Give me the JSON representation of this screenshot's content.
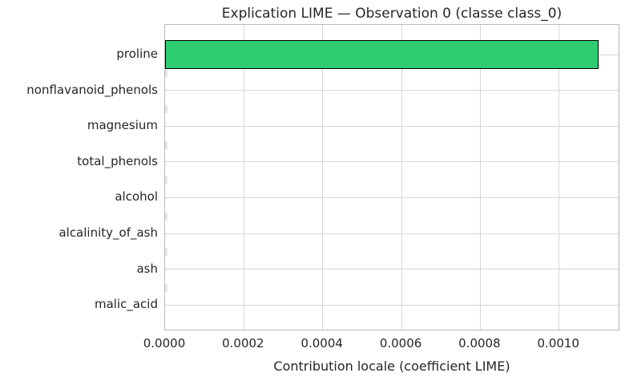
{
  "chart_data": {
    "type": "bar",
    "orientation": "horizontal",
    "title": "Explication LIME — Observation 0 (classe class_0)",
    "xlabel": "Contribution locale (coefficient LIME)",
    "ylabel": "",
    "categories": [
      "proline",
      "nonflavanoid_phenols",
      "magnesium",
      "total_phenols",
      "alcohol",
      "alcalinity_of_ash",
      "ash",
      "malic_acid"
    ],
    "values": [
      0.0011,
      0.0,
      0.0,
      0.0,
      0.0,
      0.0,
      0.0,
      0.0
    ],
    "x_ticks": [
      "0.0000",
      "0.0002",
      "0.0004",
      "0.0006",
      "0.0008",
      "0.0010"
    ],
    "x_tick_values": [
      0.0,
      0.0002,
      0.0004,
      0.0006,
      0.0008,
      0.001
    ],
    "xlim": [
      0.0,
      0.001155
    ],
    "grid": true,
    "legend": false,
    "bar_color": "#2ecc71",
    "bar_edge_color": "#000000",
    "text_color": "#262626"
  }
}
